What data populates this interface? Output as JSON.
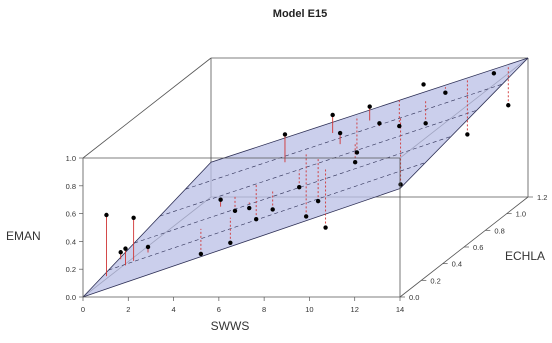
{
  "chart_data": {
    "type": "scatter",
    "title": "Model E15",
    "xlabel": "SWWS",
    "ylabel": "EMAN",
    "zlabel": "ECHLA",
    "x_ticks": [
      "0",
      "2",
      "4",
      "6",
      "8",
      "10",
      "12",
      "14"
    ],
    "y_ticks": [
      "0.0",
      "0.2",
      "0.4",
      "0.6",
      "0.8",
      "1.0"
    ],
    "z_ticks": [
      "0.0",
      "0.2",
      "0.4",
      "0.6",
      "0.8",
      "1.0",
      "1.2"
    ],
    "xlim": [
      0,
      14
    ],
    "ylim": [
      0,
      1
    ],
    "zlim": [
      0,
      1.2
    ],
    "grid": false,
    "plane_color": "#b9bfe6",
    "plane_edge_color": "#2d2f55",
    "residual_color": "#d03535",
    "point_color": "#000000",
    "points": [
      {
        "x": 0.8,
        "z": 0.05,
        "y": 0.56,
        "pred": 0.12
      },
      {
        "x": 1.5,
        "z": 0.08,
        "y": 0.3,
        "pred": 0.18
      },
      {
        "x": 2.0,
        "z": 0.05,
        "y": 0.54,
        "pred": 0.23
      },
      {
        "x": 2.4,
        "z": 0.1,
        "y": 0.3,
        "pred": 0.26
      },
      {
        "x": 1.1,
        "z": 0.12,
        "y": 0.25,
        "pred": 0.2
      },
      {
        "x": 4.5,
        "z": 0.15,
        "y": 0.22,
        "pred": 0.4
      },
      {
        "x": 4.9,
        "z": 0.25,
        "y": 0.55,
        "pred": 0.5
      },
      {
        "x": 5.3,
        "z": 0.3,
        "y": 0.44,
        "pred": 0.55
      },
      {
        "x": 5.8,
        "z": 0.15,
        "y": 0.3,
        "pred": 0.48
      },
      {
        "x": 6.0,
        "z": 0.35,
        "y": 0.35,
        "pred": 0.6
      },
      {
        "x": 6.4,
        "z": 0.2,
        "y": 0.52,
        "pred": 0.56
      },
      {
        "x": 6.8,
        "z": 0.45,
        "y": 0.9,
        "pred": 0.7
      },
      {
        "x": 7.2,
        "z": 0.25,
        "y": 0.48,
        "pred": 0.62
      },
      {
        "x": 7.5,
        "z": 0.5,
        "y": 0.28,
        "pred": 0.74
      },
      {
        "x": 7.9,
        "z": 0.35,
        "y": 0.58,
        "pred": 0.7
      },
      {
        "x": 8.2,
        "z": 0.6,
        "y": 0.95,
        "pred": 0.82
      },
      {
        "x": 8.5,
        "z": 0.4,
        "y": 0.45,
        "pred": 0.76
      },
      {
        "x": 8.8,
        "z": 0.7,
        "y": 0.62,
        "pred": 0.88
      },
      {
        "x": 9.0,
        "z": 0.5,
        "y": 0.88,
        "pred": 0.8
      },
      {
        "x": 9.3,
        "z": 0.3,
        "y": 0.32,
        "pred": 0.75
      },
      {
        "x": 9.6,
        "z": 0.65,
        "y": 0.98,
        "pred": 0.88
      },
      {
        "x": 9.9,
        "z": 0.45,
        "y": 0.7,
        "pred": 0.83
      },
      {
        "x": 10.2,
        "z": 0.8,
        "y": 0.75,
        "pred": 0.95
      },
      {
        "x": 10.5,
        "z": 0.55,
        "y": 0.92,
        "pred": 0.9
      },
      {
        "x": 10.8,
        "z": 0.9,
        "y": 0.99,
        "pred": 1.0
      },
      {
        "x": 11.2,
        "z": 0.6,
        "y": 0.45,
        "pred": 0.93
      },
      {
        "x": 11.6,
        "z": 0.75,
        "y": 0.8,
        "pred": 0.97
      },
      {
        "x": 12.0,
        "z": 0.85,
        "y": 0.96,
        "pred": 1.0
      },
      {
        "x": 12.5,
        "z": 0.95,
        "y": 0.6,
        "pred": 1.0
      },
      {
        "x": 13.2,
        "z": 1.05,
        "y": 0.98,
        "pred": 1.0
      },
      {
        "x": 13.6,
        "z": 1.1,
        "y": 0.72,
        "pred": 1.0
      }
    ]
  }
}
